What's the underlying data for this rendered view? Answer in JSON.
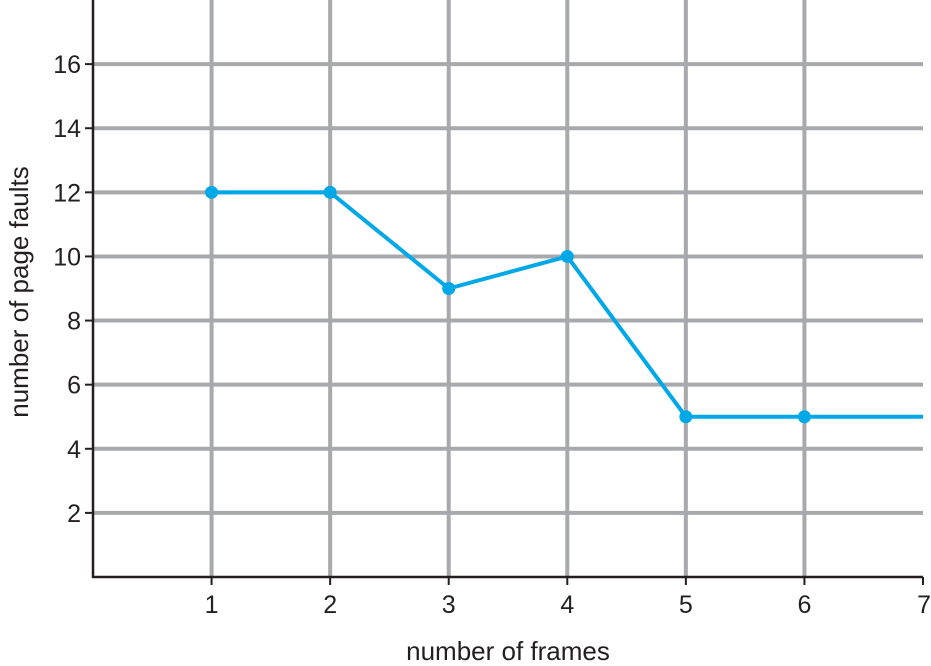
{
  "chart_data": {
    "type": "line",
    "title": "",
    "xlabel": "number of frames",
    "ylabel": "number of page faults",
    "xlim": [
      0,
      7
    ],
    "ylim": [
      0,
      18
    ],
    "x_ticks": [
      1,
      2,
      3,
      4,
      5,
      6,
      7
    ],
    "y_ticks": [
      2,
      4,
      6,
      8,
      10,
      12,
      14,
      16
    ],
    "grid": true,
    "legend": "none",
    "series": [
      {
        "x": [
          1,
          2,
          3,
          4,
          5,
          6,
          7
        ],
        "y": [
          12,
          12,
          9,
          10,
          5,
          5,
          5
        ],
        "markers": [
          true,
          true,
          true,
          true,
          true,
          true,
          false
        ]
      }
    ],
    "colors": {
      "line": "#00a8e8",
      "grid": "#a7a9ac",
      "axis": "#231f20"
    }
  }
}
